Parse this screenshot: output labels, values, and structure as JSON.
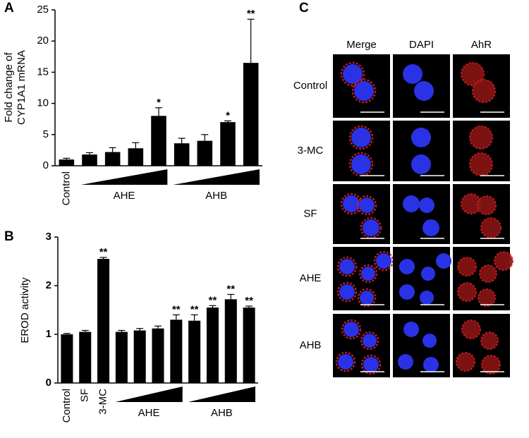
{
  "panel_labels": [
    "A",
    "B",
    "C"
  ],
  "chart_data": [
    {
      "type": "bar",
      "ylabel": [
        "Fold change of",
        "CYP1A1 mRNA"
      ],
      "categories": [
        "Control",
        null,
        null,
        null,
        null,
        null,
        null,
        null,
        null
      ],
      "values": [
        1.0,
        1.8,
        2.2,
        2.8,
        8.0,
        3.6,
        4.0,
        7.0,
        16.5
      ],
      "errors": [
        0.2,
        0.3,
        0.7,
        0.9,
        1.3,
        0.8,
        1.0,
        0.2,
        7.0
      ],
      "significance": [
        null,
        null,
        null,
        null,
        "*",
        null,
        null,
        "*",
        "**"
      ],
      "group_labels": [
        "AHE",
        "AHB"
      ],
      "color": "#000000",
      "ylim": [
        0,
        25
      ],
      "yticks": [
        0,
        5,
        10,
        15,
        20,
        25
      ],
      "grid": false
    },
    {
      "type": "bar",
      "ylabel": [
        "EROD activity"
      ],
      "categories": [
        "Control",
        "SF",
        "3-MC",
        null,
        null,
        null,
        null,
        null,
        null,
        null,
        null
      ],
      "values": [
        1.0,
        1.05,
        2.55,
        1.05,
        1.08,
        1.12,
        1.3,
        1.28,
        1.55,
        1.72,
        1.55
      ],
      "errors": [
        0.02,
        0.03,
        0.03,
        0.03,
        0.04,
        0.05,
        0.1,
        0.12,
        0.04,
        0.1,
        0.03
      ],
      "significance": [
        null,
        null,
        "**",
        null,
        null,
        null,
        "**",
        "**",
        "**",
        "**",
        "**"
      ],
      "group_labels": [
        "AHE",
        "AHB"
      ],
      "color": "#000000",
      "ylim": [
        0,
        3
      ],
      "yticks": [
        0,
        1,
        2,
        3
      ],
      "grid": false
    }
  ],
  "panel_c": {
    "columns": [
      "Merge",
      "DAPI",
      "AhR"
    ],
    "rows": [
      "Control",
      "3-MC",
      "SF",
      "AHE",
      "AHB"
    ]
  }
}
